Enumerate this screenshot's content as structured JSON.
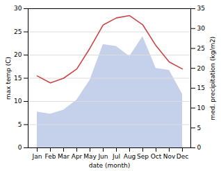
{
  "chart_data": {
    "type": "line",
    "xlabel": "date (month)",
    "ylabel": "max temp (C)",
    "y2label": "med. precipitation (kg/m2)",
    "categories": [
      "Jan",
      "Feb",
      "Mar",
      "Apr",
      "May",
      "Jun",
      "Jul",
      "Aug",
      "Sep",
      "Oct",
      "Nov",
      "Dec"
    ],
    "series": [
      {
        "type": "area",
        "axis": "y2",
        "color": "#c5d0ea",
        "values": [
          9.0,
          8.5,
          9.5,
          12.0,
          17.0,
          26.0,
          25.5,
          23.0,
          28.0,
          20.0,
          19.5,
          13.5
        ]
      },
      {
        "type": "line",
        "color": "#cc4444",
        "values": [
          15.5,
          14.0,
          15.0,
          17.0,
          21.5,
          26.5,
          28.0,
          28.5,
          26.5,
          22.0,
          18.5,
          17.0
        ]
      }
    ],
    "ylim": [
      0,
      30
    ],
    "yticks": [
      0,
      5,
      10,
      15,
      20,
      25,
      30
    ],
    "y2lim": [
      0,
      35
    ],
    "y2ticks": [
      0,
      5,
      10,
      15,
      20,
      25,
      30,
      35
    ],
    "grid": true
  }
}
